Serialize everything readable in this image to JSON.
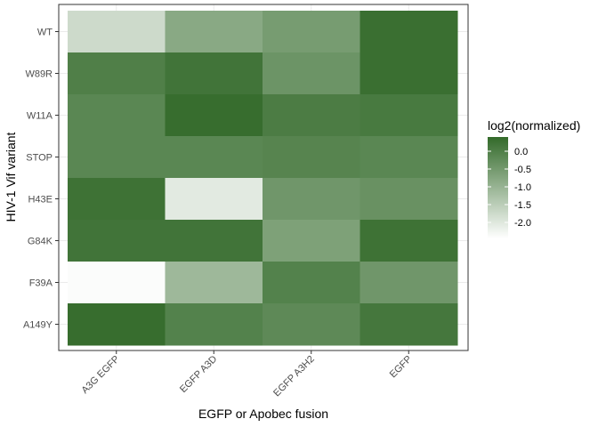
{
  "chart_data": {
    "type": "heatmap",
    "title": "",
    "xlabel": "EGFP or Apobec fusion",
    "ylabel": "HIV-1 Vif variant",
    "x_categories": [
      "A3G EGFP",
      "EGFP A3D",
      "EGFP A3H2",
      "EGFP"
    ],
    "y_categories": [
      "WT",
      "W89R",
      "W11A",
      "STOP",
      "H43E",
      "G84K",
      "F39A",
      "A149Y"
    ],
    "values": [
      [
        -1.75,
        -0.8,
        -0.55,
        0.3
      ],
      [
        0.0,
        0.2,
        -0.4,
        0.3
      ],
      [
        -0.15,
        0.35,
        0.05,
        0.1
      ],
      [
        -0.15,
        -0.15,
        -0.1,
        -0.15
      ],
      [
        0.25,
        -2.05,
        -0.45,
        -0.35
      ],
      [
        0.2,
        0.2,
        -0.65,
        0.25
      ],
      [
        -2.4,
        -1.1,
        -0.05,
        -0.45
      ],
      [
        0.35,
        -0.05,
        -0.2,
        0.15
      ]
    ],
    "grid": true,
    "legend": {
      "title": "log2(normalized)",
      "placement": "right",
      "ticks": [
        0.0,
        -0.5,
        -1.0,
        -1.5,
        -2.0
      ],
      "tick_labels": [
        "0.0",
        "-0.5",
        "-1.0",
        "-1.5",
        "-2.0"
      ],
      "range": [
        -2.45,
        0.4
      ],
      "color_low": "#ffffff",
      "color_high": "#336a2a"
    }
  }
}
